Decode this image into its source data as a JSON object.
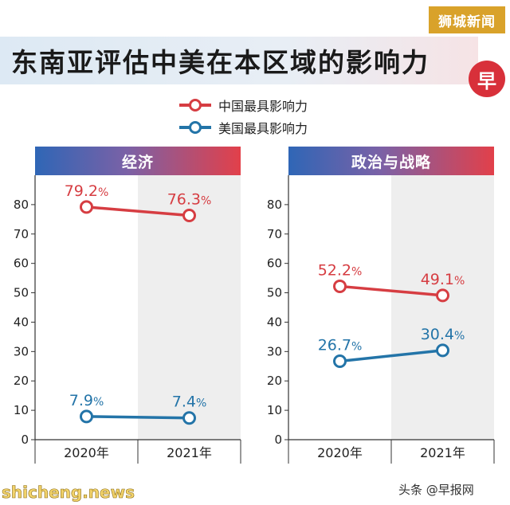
{
  "brand_badge": "狮城新闻",
  "title": "东南亚评估中美在本区域的影响力",
  "publisher_logo": "早",
  "legend": [
    {
      "label": "中国最具影响力",
      "color": "#d63d42"
    },
    {
      "label": "美国最具影响力",
      "color": "#2374a8"
    }
  ],
  "colors": {
    "china": "#d63d42",
    "usa": "#2374a8",
    "shade": "#eeeeee"
  },
  "chart_data": [
    {
      "type": "line",
      "title": "经济",
      "categories": [
        "2020年",
        "2021年"
      ],
      "ylim": [
        0,
        90
      ],
      "yticks": [
        0,
        10,
        20,
        30,
        40,
        50,
        60,
        70,
        80
      ],
      "series": [
        {
          "name": "中国最具影响力",
          "values": [
            79.2,
            76.3
          ],
          "labels": [
            "79.2%",
            "76.3%"
          ]
        },
        {
          "name": "美国最具影响力",
          "values": [
            7.9,
            7.4
          ],
          "labels": [
            "7.9%",
            "7.4%"
          ]
        }
      ]
    },
    {
      "type": "line",
      "title": "政治与战略",
      "categories": [
        "2020年",
        "2021年"
      ],
      "ylim": [
        0,
        90
      ],
      "yticks": [
        0,
        10,
        20,
        30,
        40,
        50,
        60,
        70,
        80
      ],
      "series": [
        {
          "name": "中国最具影响力",
          "values": [
            52.2,
            49.1
          ],
          "labels": [
            "52.2%",
            "49.1%"
          ]
        },
        {
          "name": "美国最具影响力",
          "values": [
            26.7,
            30.4
          ],
          "labels": [
            "26.7%",
            "30.4%"
          ]
        }
      ]
    }
  ],
  "footer": {
    "left": "shicheng.news",
    "right": "头条 @早报网"
  }
}
